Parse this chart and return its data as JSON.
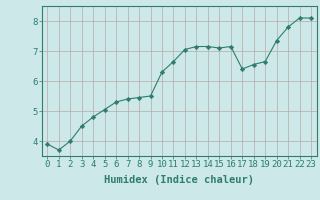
{
  "x": [
    0,
    1,
    2,
    3,
    4,
    5,
    6,
    7,
    8,
    9,
    10,
    11,
    12,
    13,
    14,
    15,
    16,
    17,
    18,
    19,
    20,
    21,
    22,
    23
  ],
  "y": [
    3.9,
    3.7,
    4.0,
    4.5,
    4.8,
    5.05,
    5.3,
    5.4,
    5.45,
    5.5,
    6.3,
    6.65,
    7.05,
    7.15,
    7.15,
    7.1,
    7.15,
    6.4,
    6.55,
    6.65,
    7.35,
    7.8,
    8.1,
    8.1
  ],
  "xlabel": "Humidex (Indice chaleur)",
  "xlim": [
    -0.5,
    23.5
  ],
  "ylim": [
    3.5,
    8.5
  ],
  "yticks": [
    4,
    5,
    6,
    7,
    8
  ],
  "xticks": [
    0,
    1,
    2,
    3,
    4,
    5,
    6,
    7,
    8,
    9,
    10,
    11,
    12,
    13,
    14,
    15,
    16,
    17,
    18,
    19,
    20,
    21,
    22,
    23
  ],
  "line_color": "#2e7d6e",
  "marker": "D",
  "marker_size": 2.2,
  "bg_color": "#cce8e8",
  "grid_color": "#b8a8a8",
  "axis_color": "#2e7d6e",
  "tick_color": "#2e7d6e",
  "label_color": "#2e7d6e",
  "font_size_xlabel": 7.5,
  "font_size_ticks": 6.5
}
